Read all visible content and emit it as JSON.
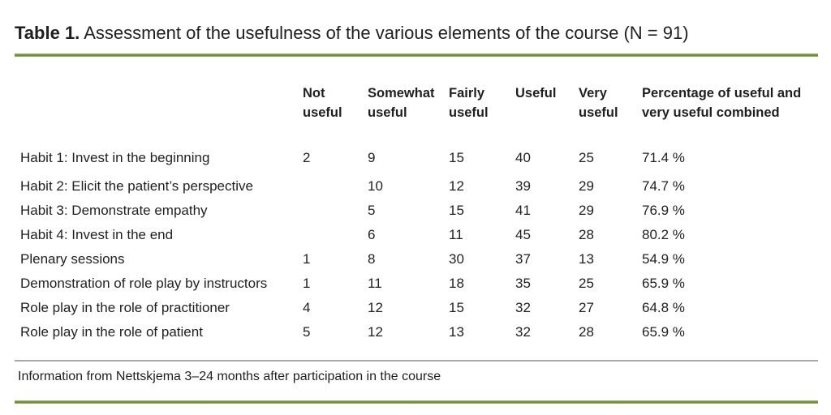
{
  "title": {
    "prefix": "Table 1.",
    "rest": " Assessment of the usefulness of the various elements of the course (N = 91)"
  },
  "table": {
    "headers": [
      "Not useful",
      "Somewhat useful",
      "Fairly useful",
      "Useful",
      "Very useful",
      "Percentage of useful and very useful combined"
    ],
    "rows": [
      {
        "label": "Habit 1: Invest in the beginning",
        "values": [
          "2",
          "9",
          "15",
          "40",
          "25",
          "71.4 %"
        ]
      },
      {
        "label": "Habit 2: Elicit the patient’s perspective",
        "values": [
          "",
          "10",
          "12",
          "39",
          "29",
          "74.7 %"
        ]
      },
      {
        "label": "Habit 3: Demonstrate empathy",
        "values": [
          "",
          "5",
          "15",
          "41",
          "29",
          "76.9 %"
        ]
      },
      {
        "label": "Habit 4: Invest in the end",
        "values": [
          "",
          "6",
          "11",
          "45",
          "28",
          "80.2 %"
        ]
      },
      {
        "label": "Plenary sessions",
        "values": [
          "1",
          "8",
          "30",
          "37",
          "13",
          "54.9 %"
        ]
      },
      {
        "label": "Demonstration of role play by instructors",
        "values": [
          "1",
          "11",
          "18",
          "35",
          "25",
          "65.9 %"
        ]
      },
      {
        "label": "Role play in the role of practitioner",
        "values": [
          "4",
          "12",
          "15",
          "32",
          "27",
          "64.8 %"
        ]
      },
      {
        "label": "Role play in the role of patient",
        "values": [
          "5",
          "12",
          "13",
          "32",
          "28",
          "65.9 %"
        ]
      }
    ]
  },
  "footer": {
    "note": "Information from Nettskjema 3–24 months after participation in the course"
  },
  "colors": {
    "accent_green": "#72903a",
    "accent_green_light": "#aec383",
    "divider_gray": "#a8a8a8",
    "text": "#1f1f1f",
    "background": "#ffffff"
  }
}
